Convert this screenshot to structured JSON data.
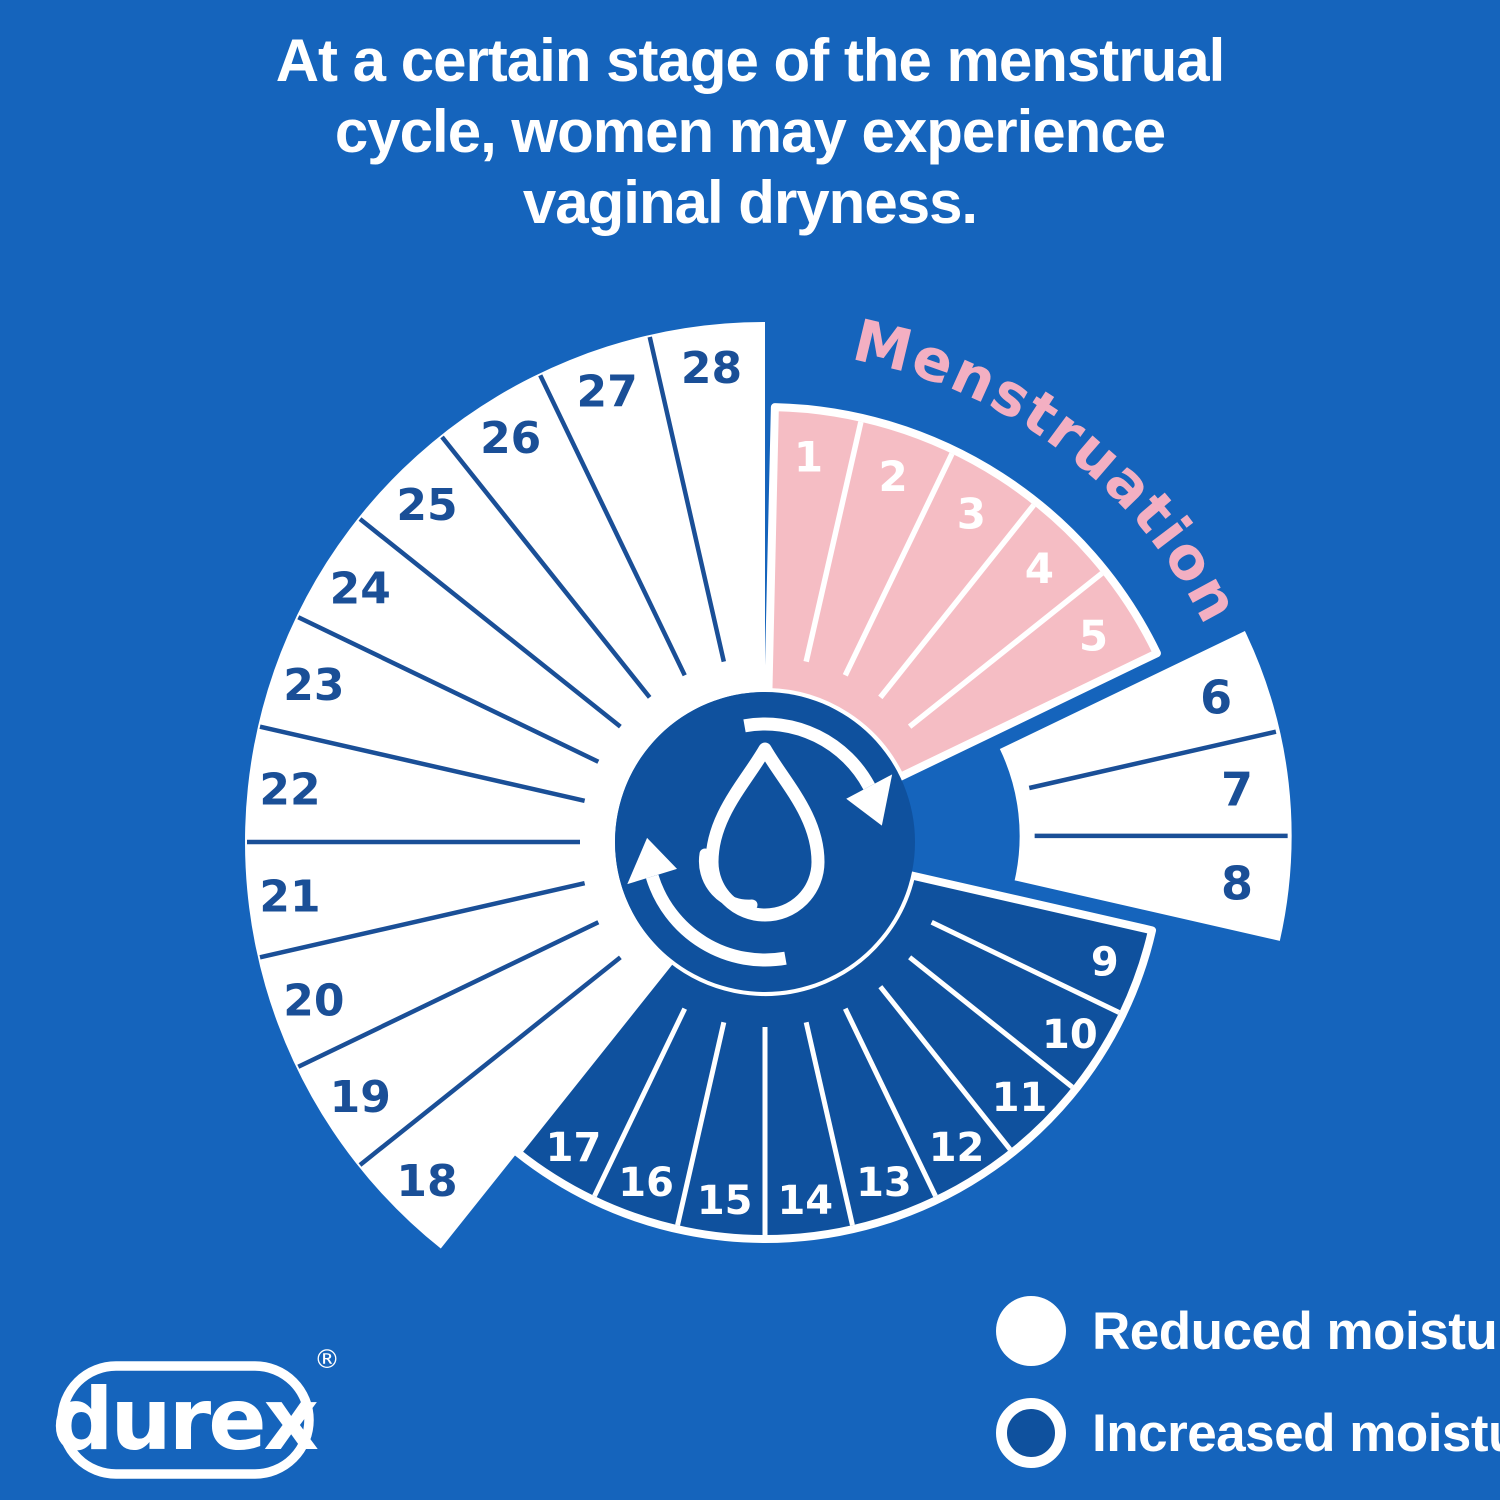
{
  "title": {
    "lines": [
      "At a certain stage of the menstrual",
      "cycle, women may experience",
      "vaginal dryness."
    ]
  },
  "colors": {
    "background": "#1564BC",
    "wheel_dark_blue": "#0F519E",
    "number_dark_blue": "#1A4F97",
    "pink_segment": "#F5BDC4",
    "pink_label": "#F3AFC2",
    "white": "#FFFFFF"
  },
  "chart_data": {
    "type": "pie",
    "subtype": "menstrual-cycle-day-wheel",
    "total_days": 28,
    "phase_label": "Menstruation",
    "center_icon": "water-drop-with-cycle-arrows",
    "segments": [
      {
        "name": "menstruation",
        "moisture": "menstruation",
        "style": "pink",
        "days": [
          1,
          2,
          3,
          4,
          5
        ]
      },
      {
        "name": "reduced-moisture-highlighted",
        "moisture": "reduced",
        "style": "white-exploded",
        "days": [
          6,
          7,
          8
        ]
      },
      {
        "name": "increased-moisture",
        "moisture": "increased",
        "style": "dark-blue",
        "days": [
          9,
          10,
          11,
          12,
          13,
          14,
          15,
          16,
          17
        ]
      },
      {
        "name": "reduced-moisture",
        "moisture": "reduced",
        "style": "white",
        "days": [
          18,
          19,
          20,
          21,
          22,
          23,
          24,
          25,
          26,
          27,
          28
        ]
      }
    ],
    "legend": [
      {
        "label": "Reduced moisture",
        "swatch": "white-filled-circle"
      },
      {
        "label": "Increased moisture",
        "swatch": "white-outlined-circle"
      }
    ]
  },
  "logo": {
    "text": "durex",
    "registered": "®"
  }
}
